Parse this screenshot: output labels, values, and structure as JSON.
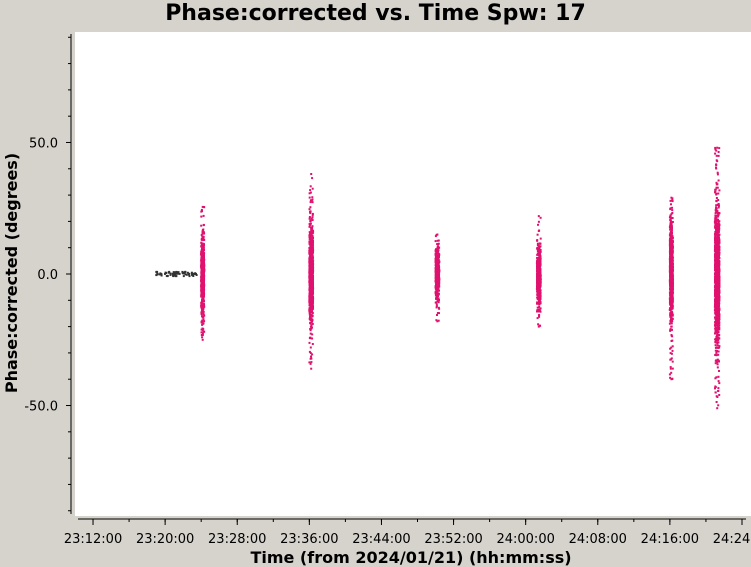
{
  "title": "Phase:corrected vs. Time Spw: 17",
  "chart_data": {
    "type": "scatter",
    "title": "Phase:corrected vs. Time Spw: 17",
    "xlabel": "Time (from 2024/01/21) (hh:mm:ss)",
    "ylabel": "Phase:corrected (degrees)",
    "x_unit": "hh:mm:ss",
    "xlim": [
      "23:10:00",
      "24:25:00"
    ],
    "ylim": [
      -92,
      92
    ],
    "x_ticks": [
      "23:12:00",
      "23:20:00",
      "23:28:00",
      "23:36:00",
      "23:44:00",
      "23:52:00",
      "24:00:00",
      "24:08:00",
      "24:16:00",
      "24:24:00"
    ],
    "y_ticks": [
      {
        "value": 50,
        "label": "50.0"
      },
      {
        "value": 0,
        "label": "0.0"
      },
      {
        "value": -50,
        "label": "-50.0"
      }
    ],
    "grid": false,
    "colors": {
      "calibrator": "#333333",
      "target": "#e0116f",
      "plot_background": "#ffffff",
      "page_background": "#d6d2cc"
    },
    "series": [
      {
        "color": "#333333",
        "clusters": [
          {
            "time_start": "23:19:00",
            "time_end": "23:23:30",
            "y_min": -0.8,
            "y_max": 0.8,
            "y_spread": 0.6
          }
        ]
      },
      {
        "color": "#e0116f",
        "clusters": [
          {
            "time_start": "23:24:00",
            "time_end": "23:24:20",
            "y_min": -25,
            "y_max": 25.5,
            "y_spread": 7
          },
          {
            "time_start": "23:36:00",
            "time_end": "23:36:25",
            "y_min": -36,
            "y_max": 38,
            "y_spread": 8
          },
          {
            "time_start": "23:50:00",
            "time_end": "23:50:25",
            "y_min": -18,
            "y_max": 15,
            "y_spread": 5
          },
          {
            "time_start": "24:01:15",
            "time_end": "24:01:40",
            "y_min": -20,
            "y_max": 22,
            "y_spread": 5
          },
          {
            "time_start": "24:16:00",
            "time_end": "24:16:20",
            "y_min": -40,
            "y_max": 29,
            "y_spread": 8
          },
          {
            "time_start": "24:21:00",
            "time_end": "24:21:30",
            "y_min": -51,
            "y_max": 48,
            "y_spread": 11
          }
        ]
      }
    ]
  }
}
